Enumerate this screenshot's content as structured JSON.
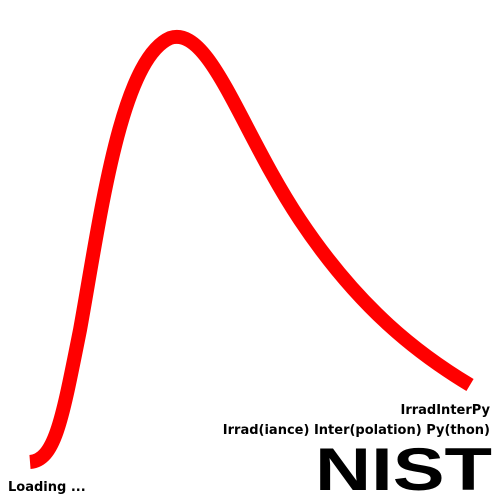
{
  "app_title": "IrradInterPy",
  "app_subtitle": "Irrad(iance) Inter(polation) Py(thon)",
  "logo": "NIST",
  "status": "Loading ..."
}
